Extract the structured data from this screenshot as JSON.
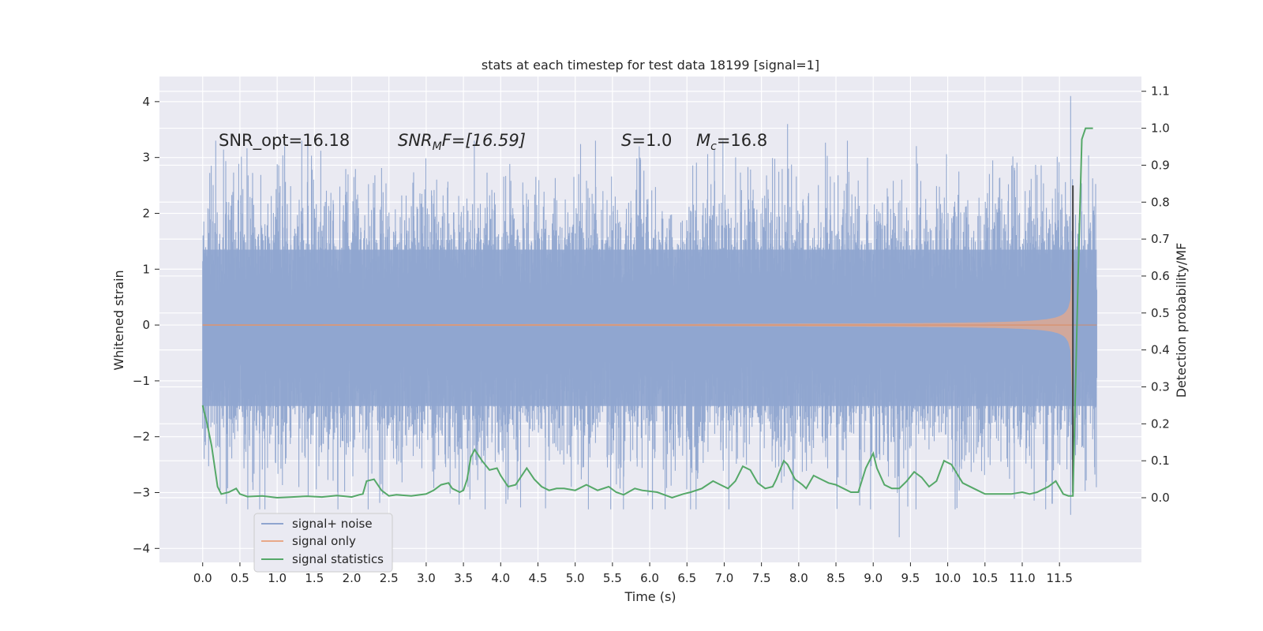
{
  "chart_data": {
    "type": "line",
    "title": "stats at each timestep for test data 18199 [signal=1]",
    "xlabel": "Time (s)",
    "ylabel_left": "Whitened strain",
    "ylabel_right": "Detection probability/MF",
    "xlim": [
      -0.58,
      12.6
    ],
    "ylim_left": [
      -4.25,
      4.45
    ],
    "ylim_right": [
      -0.175,
      1.14
    ],
    "x_ticks": [
      0.0,
      0.5,
      1.0,
      1.5,
      2.0,
      2.5,
      3.0,
      3.5,
      4.0,
      4.5,
      5.0,
      5.5,
      6.0,
      6.5,
      7.0,
      7.5,
      8.0,
      8.5,
      9.0,
      9.5,
      10.0,
      10.5,
      11.0,
      11.5
    ],
    "x_tick_labels": [
      "0.0",
      "0.5",
      "1.0",
      "1.5",
      "2.0",
      "2.5",
      "3.0",
      "3.5",
      "4.0",
      "4.5",
      "5.0",
      "5.5",
      "6.0",
      "6.5",
      "7.0",
      "7.5",
      "8.0",
      "8.5",
      "9.0",
      "9.5",
      "10.0",
      "10.5",
      "11.0",
      "11.5"
    ],
    "y_ticks_left": [
      4,
      3,
      2,
      1,
      0,
      -1,
      -2,
      -3,
      -4
    ],
    "y_tick_labels_left": [
      "4",
      "3",
      "2",
      "1",
      "0",
      "−1",
      "−2",
      "−3",
      "−4"
    ],
    "y_ticks_right": [
      1.1,
      1.0,
      0.9,
      0.8,
      0.7,
      0.6,
      0.5,
      0.4,
      0.3,
      0.2,
      0.1,
      0.0
    ],
    "y_tick_labels_right": [
      "1.1",
      "1.0",
      "0.9",
      "0.8",
      "0.7",
      "0.6",
      "0.5",
      "0.4",
      "0.3",
      "0.2",
      "0.1",
      "0.0"
    ],
    "grid": true,
    "annotations": {
      "snr_opt": "SNR_opt=16.18",
      "snr_mf_prefix": "SNR",
      "snr_mf_sub": "M",
      "snr_mf_suffix": "F=[16.59]",
      "s_prefix": "S",
      "s_suffix": "=1.0",
      "mc_prefix": "M",
      "mc_sub": "c",
      "mc_suffix": "=16.8"
    },
    "series": [
      {
        "name": "signal+ noise",
        "color": "#8fa5cf",
        "axis": "left",
        "description_range": [
          -3.9,
          4.1
        ],
        "t_range": [
          0.0,
          12.0
        ],
        "peaks": [
          [
            1.1,
            3.2
          ],
          [
            5.86,
            3.2
          ],
          [
            7.85,
            3.6
          ],
          [
            11.65,
            4.1
          ],
          [
            9.35,
            -3.8
          ],
          [
            11.65,
            -3.4
          ],
          [
            4.07,
            -3.2
          ],
          [
            0.32,
            -3.2
          ],
          [
            7.92,
            -3.3
          ]
        ]
      },
      {
        "name": "signal only",
        "color": "#dd8452",
        "axis": "left",
        "t_range": [
          0.0,
          12.0
        ],
        "merger_time": 11.68,
        "peak_amplitude": 3.0
      },
      {
        "name": "signal statistics",
        "color": "#55a868",
        "axis": "right",
        "x": [
          0.0,
          0.06,
          0.12,
          0.2,
          0.25,
          0.35,
          0.45,
          0.5,
          0.6,
          0.8,
          1.0,
          1.2,
          1.4,
          1.6,
          1.8,
          1.9,
          2.0,
          2.1,
          2.15,
          2.2,
          2.3,
          2.4,
          2.5,
          2.6,
          2.8,
          3.0,
          3.1,
          3.2,
          3.3,
          3.35,
          3.45,
          3.5,
          3.55,
          3.6,
          3.65,
          3.75,
          3.85,
          3.95,
          4.0,
          4.1,
          4.2,
          4.3,
          4.35,
          4.45,
          4.55,
          4.65,
          4.75,
          4.85,
          5.0,
          5.15,
          5.3,
          5.45,
          5.55,
          5.65,
          5.8,
          5.9,
          6.1,
          6.3,
          6.45,
          6.55,
          6.7,
          6.85,
          6.95,
          7.05,
          7.15,
          7.25,
          7.35,
          7.45,
          7.55,
          7.65,
          7.7,
          7.8,
          7.85,
          7.95,
          8.05,
          8.1,
          8.2,
          8.3,
          8.4,
          8.5,
          8.6,
          8.7,
          8.8,
          8.9,
          9.0,
          9.05,
          9.15,
          9.25,
          9.35,
          9.45,
          9.55,
          9.65,
          9.75,
          9.85,
          9.95,
          10.05,
          10.2,
          10.35,
          10.5,
          10.65,
          10.85,
          11.0,
          11.1,
          11.2,
          11.3,
          11.35,
          11.45,
          11.55,
          11.62,
          11.68,
          11.75,
          11.8,
          11.85,
          11.9,
          11.95
        ],
        "values": [
          0.25,
          0.2,
          0.14,
          0.03,
          0.01,
          0.015,
          0.025,
          0.01,
          0.003,
          0.005,
          0.0,
          0.002,
          0.004,
          0.002,
          0.006,
          0.004,
          0.002,
          0.008,
          0.01,
          0.045,
          0.05,
          0.02,
          0.005,
          0.008,
          0.005,
          0.01,
          0.02,
          0.035,
          0.04,
          0.025,
          0.015,
          0.02,
          0.05,
          0.11,
          0.13,
          0.1,
          0.075,
          0.08,
          0.06,
          0.03,
          0.035,
          0.065,
          0.08,
          0.05,
          0.03,
          0.02,
          0.025,
          0.025,
          0.02,
          0.035,
          0.02,
          0.03,
          0.015,
          0.008,
          0.025,
          0.02,
          0.015,
          0.0,
          0.01,
          0.015,
          0.025,
          0.045,
          0.035,
          0.025,
          0.045,
          0.085,
          0.075,
          0.04,
          0.025,
          0.03,
          0.05,
          0.1,
          0.09,
          0.05,
          0.035,
          0.025,
          0.06,
          0.05,
          0.04,
          0.035,
          0.025,
          0.015,
          0.015,
          0.08,
          0.12,
          0.08,
          0.035,
          0.025,
          0.025,
          0.045,
          0.07,
          0.055,
          0.03,
          0.045,
          0.1,
          0.09,
          0.04,
          0.025,
          0.01,
          0.01,
          0.01,
          0.015,
          0.01,
          0.015,
          0.025,
          0.03,
          0.045,
          0.01,
          0.005,
          0.005,
          0.6,
          0.97,
          1.0,
          1.0,
          1.0
        ]
      }
    ],
    "legend": {
      "position": "lower-left",
      "entries": [
        "signal+ noise",
        "signal only",
        "signal statistics"
      ]
    }
  },
  "colors": {
    "axes_background": "#eaeaf2",
    "grid": "#ffffff",
    "noise": "#8fa5cf",
    "signal": "#dd8452",
    "statistic": "#55a868",
    "text": "#262626"
  }
}
